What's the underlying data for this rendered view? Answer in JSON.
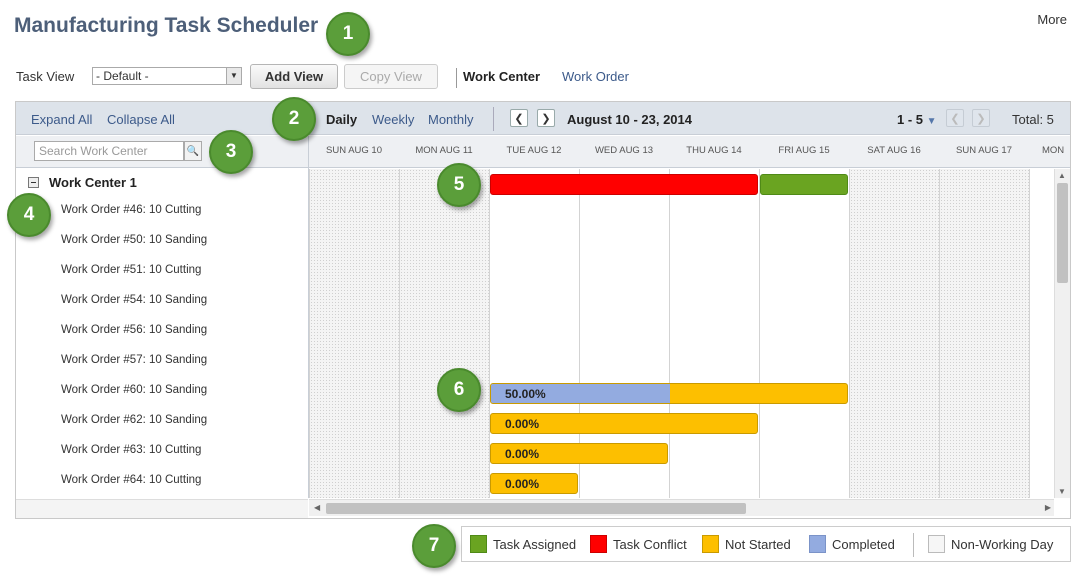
{
  "page": {
    "title": "Manufacturing Task Scheduler",
    "more_label": "More"
  },
  "callouts": [
    "1",
    "2",
    "3",
    "4",
    "5",
    "6",
    "7"
  ],
  "toolbar": {
    "task_view_label": "Task View",
    "task_view_value": "- Default -",
    "add_view_label": "Add View",
    "copy_view_label": "Copy View",
    "tab_work_center": "Work Center",
    "tab_work_order": "Work Order"
  },
  "scheduler_header": {
    "expand_all": "Expand All",
    "collapse_all": "Collapse All",
    "view_daily": "Daily",
    "view_weekly": "Weekly",
    "view_monthly": "Monthly",
    "date_range": "August 10 - 23, 2014",
    "pager": "1 - 5",
    "total": "Total: 5",
    "search_placeholder": "Search Work Center"
  },
  "days": [
    "SUN AUG 10",
    "MON AUG 11",
    "TUE AUG 12",
    "WED AUG 13",
    "THU AUG 14",
    "FRI AUG 15",
    "SAT AUG 16",
    "SUN AUG 17",
    "MON"
  ],
  "tree": {
    "work_center": "Work Center 1",
    "work_orders": [
      "Work Order #46: 10 Cutting",
      "Work Order #50: 10 Sanding",
      "Work Order #51: 10 Cutting",
      "Work Order #54: 10 Sanding",
      "Work Order #56: 10 Sanding",
      "Work Order #57: 10 Sanding",
      "Work Order #60: 10 Sanding",
      "Work Order #62: 10 Sanding",
      "Work Order #63: 10 Cutting",
      "Work Order #64: 10 Cutting"
    ]
  },
  "bar_labels": {
    "wo60": "50.00%",
    "wo62": "0.00%",
    "wo63": "0.00%",
    "wo64": "0.00%"
  },
  "colors": {
    "task_assigned": "#6aa421",
    "task_conflict": "#ff0000",
    "not_started": "#fdbf00",
    "completed": "#93abe0",
    "non_working": "#f4f4f4"
  },
  "legend": {
    "task_assigned": "Task Assigned",
    "task_conflict": "Task Conflict",
    "not_started": "Not Started",
    "completed": "Completed",
    "non_working_day": "Non-Working Day"
  }
}
